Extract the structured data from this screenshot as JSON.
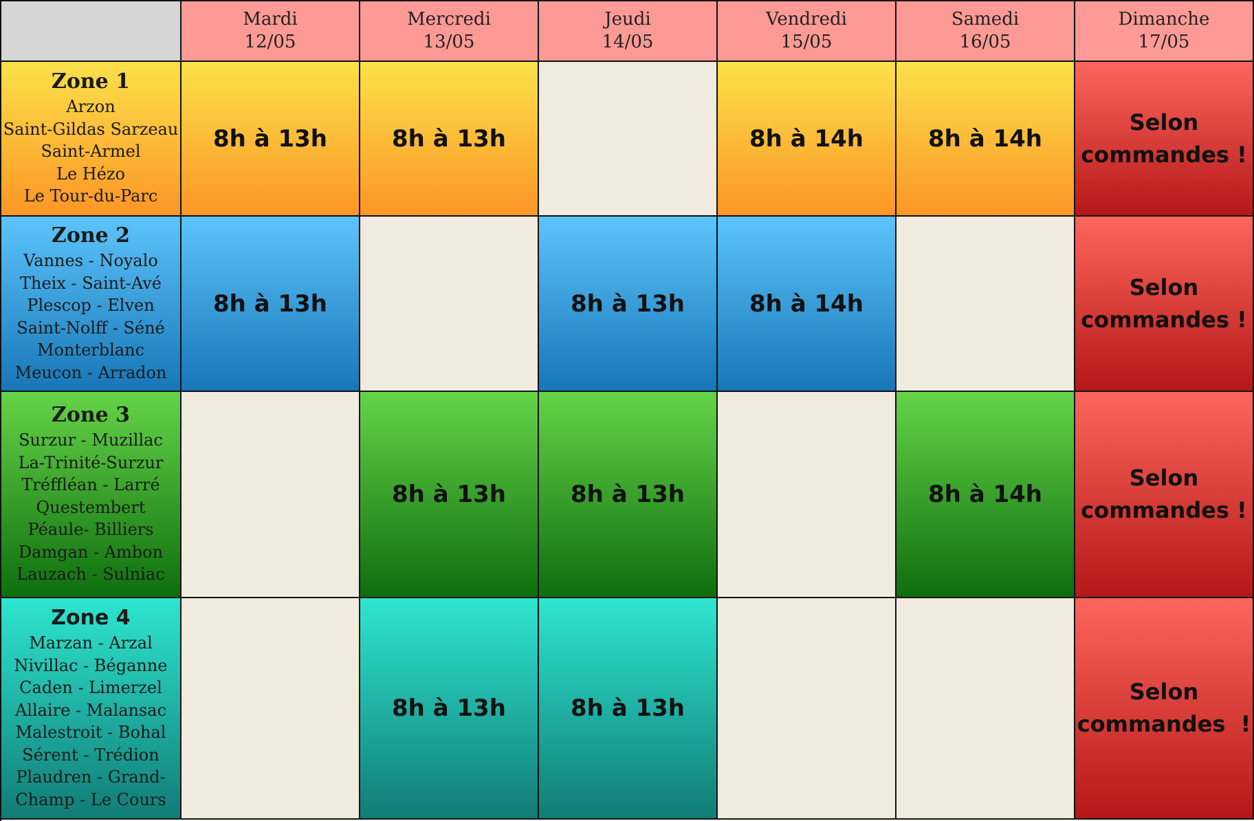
{
  "days": [
    {
      "name": "Mardi",
      "date": "12/05"
    },
    {
      "name": "Mercredi",
      "date": "13/05"
    },
    {
      "name": "Jeudi",
      "date": "14/05"
    },
    {
      "name": "Vendredi",
      "date": "15/05"
    },
    {
      "name": "Samedi",
      "date": "16/05"
    },
    {
      "name": "Dimanche",
      "date": "17/05"
    }
  ],
  "zones": [
    {
      "title": "Zone 1",
      "towns": [
        "Arzon",
        "Saint-Gildas Sarzeau",
        "Saint-Armel",
        "Le Hézo",
        "Le Tour-du-Parc"
      ],
      "slots": [
        "8h à 13h",
        "8h à 13h",
        "",
        "8h à 14h",
        "8h à 14h"
      ],
      "sunday": [
        "Selon",
        "commandes !"
      ],
      "color_top": "#fbe14a",
      "color_bottom": "#fd9626"
    },
    {
      "title": "Zone 2",
      "towns": [
        "Vannes - Noyalo",
        "Theix - Saint-Avé",
        "Plescop - Elven",
        "Saint-Nolff  - Séné",
        "Monterblanc",
        "Meucon - Arradon"
      ],
      "slots": [
        "8h à 13h",
        "",
        "8h à 13h",
        "8h à 14h",
        ""
      ],
      "sunday": [
        "Selon",
        "commandes !"
      ],
      "color_top": "#5dc4fb",
      "color_bottom": "#1776b7"
    },
    {
      "title": "Zone 3",
      "towns": [
        "Surzur - Muzillac",
        "La-Trinité-Surzur",
        "Tréffléan - Larré",
        "Questembert",
        "Péaule- Billiers",
        "Damgan - Ambon",
        "Lauzach - Sulniac"
      ],
      "slots": [
        "",
        "8h à 13h",
        "8h à 13h",
        "",
        "8h à 14h"
      ],
      "sunday": [
        "Selon",
        "commandes !"
      ],
      "color_top": "#65d448",
      "color_bottom": "#0e6e0e"
    },
    {
      "title": "Zone 4",
      "towns": [
        "Marzan - Arzal",
        "Nivillac - Béganne",
        "Caden - Limerzel",
        "Allaire - Malansac",
        "Malestroit - Bohal",
        "Sérent - Trédion",
        "Plaudren - Grand-",
        "Champ - Le Cours"
      ],
      "slots": [
        "",
        "8h à 13h",
        "8h à 13h",
        "",
        ""
      ],
      "sunday": [
        "Selon",
        "commandes  !"
      ],
      "color_top": "#2ee6d0",
      "color_bottom": "#117c76"
    }
  ],
  "empty_color": "#f0ebde",
  "header_color": "#fd9a95",
  "sunday_color": "#e0352d"
}
